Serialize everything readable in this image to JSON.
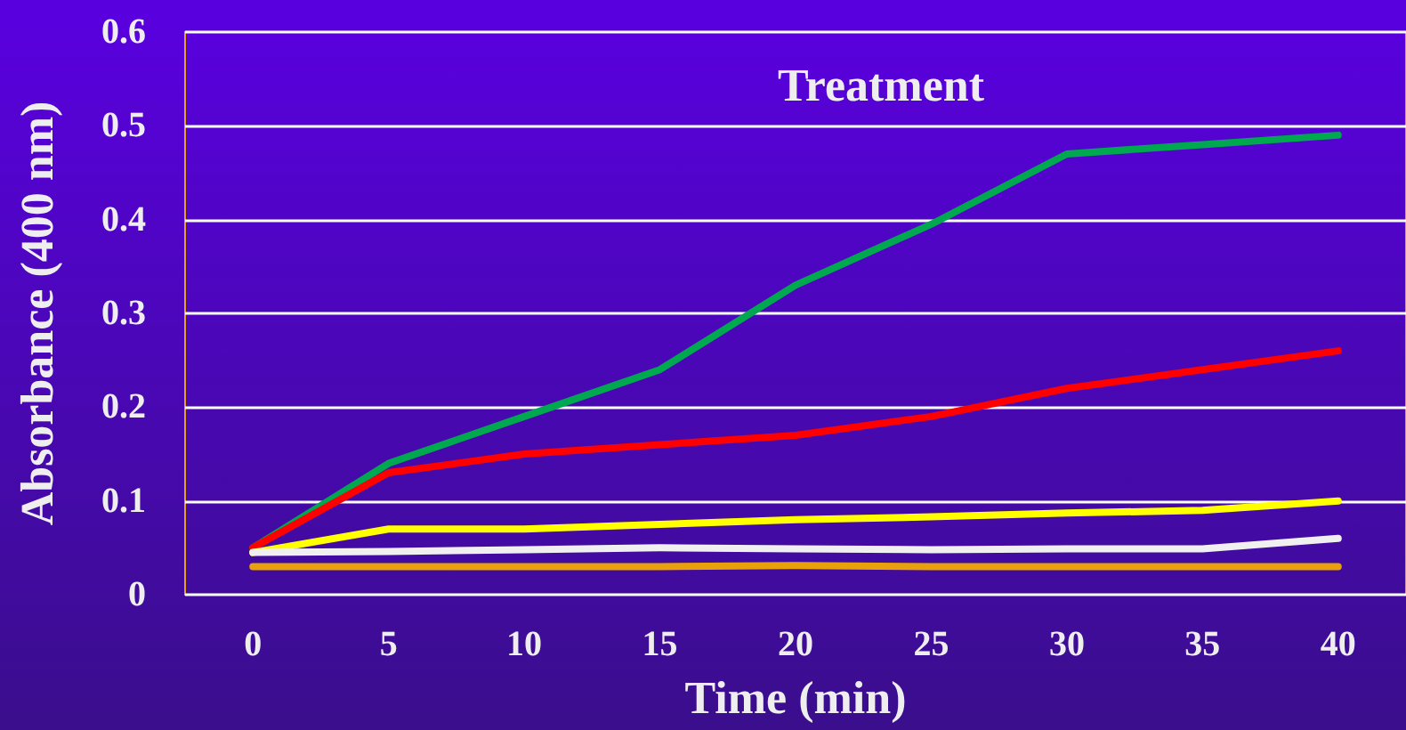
{
  "chart_data": {
    "type": "line",
    "title": "Treatment",
    "xlabel": "Time (min)",
    "ylabel": "Absorbance (400 nm)",
    "categories": [
      "0",
      "5",
      "10",
      "15",
      "20",
      "25",
      "30",
      "35",
      "40"
    ],
    "series": [
      {
        "color": "#00a84f",
        "values": [
          0.05,
          0.14,
          0.19,
          0.24,
          0.33,
          0.395,
          0.47,
          0.48,
          0.49
        ]
      },
      {
        "color": "#ff0000",
        "values": [
          0.05,
          0.13,
          0.15,
          0.16,
          0.17,
          0.19,
          0.22,
          0.24,
          0.26
        ]
      },
      {
        "color": "#ffff00",
        "values": [
          0.045,
          0.07,
          0.07,
          0.075,
          0.08,
          0.083,
          0.087,
          0.09,
          0.1
        ]
      },
      {
        "color": "#f0f0f0",
        "values": [
          0.045,
          0.046,
          0.048,
          0.05,
          0.049,
          0.048,
          0.049,
          0.049,
          0.06
        ]
      },
      {
        "color": "#e8a10a",
        "values": [
          0.03,
          0.03,
          0.03,
          0.03,
          0.031,
          0.03,
          0.03,
          0.03,
          0.03
        ]
      }
    ],
    "ylim": [
      0,
      0.6
    ],
    "yticks": [
      0,
      0.1,
      0.2,
      0.3,
      0.4,
      0.5,
      0.6
    ],
    "grid": "y",
    "marker": "none",
    "line_style": "solid"
  }
}
